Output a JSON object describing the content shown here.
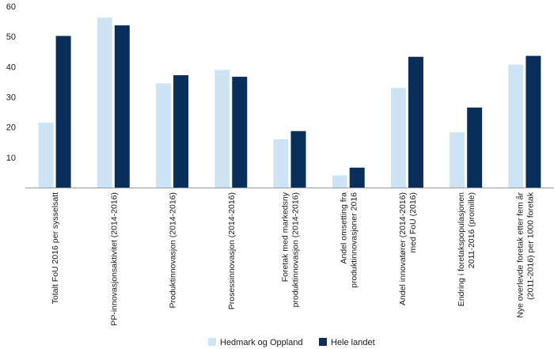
{
  "chart_data": {
    "type": "bar",
    "title": "",
    "xlabel": "",
    "ylabel": "",
    "ylim": [
      0,
      60
    ],
    "yticks": [
      10,
      20,
      30,
      40,
      50,
      60
    ],
    "grid": false,
    "legend_position": "bottom-center",
    "categories": [
      [
        "Totalt FoU 2016 per sysselsatt"
      ],
      [
        "PP-innovasjonsaktivitet (2014-2016)"
      ],
      [
        "Produktinnovasjon (2014-2016)"
      ],
      [
        "Prosessinnovasjon (2014-2016)"
      ],
      [
        "Foretak med markedsny",
        "produktinnovasjon (2014-2016)"
      ],
      [
        "Andel omsetting fra",
        "produktinnovasjoner 2016"
      ],
      [
        "Andel innovatører (2014-2016)",
        "med FoU (2016)"
      ],
      [
        "Endring i foretakspopulasjonen",
        "2011-2016 (promille)"
      ],
      [
        "Nye overlevde foretak etter fem år",
        "(2011-2016) per 1000 foretak"
      ]
    ],
    "series": [
      {
        "name": "Hedmark og Oppland",
        "color": "#cce4f6",
        "values": [
          21.5,
          56.3,
          34.5,
          39.0,
          16.0,
          4.0,
          33.0,
          18.3,
          40.7
        ]
      },
      {
        "name": "Hele landet",
        "color": "#0b2f5b",
        "values": [
          50.2,
          53.7,
          37.2,
          36.7,
          18.7,
          6.6,
          43.3,
          26.5,
          43.6
        ]
      }
    ]
  }
}
